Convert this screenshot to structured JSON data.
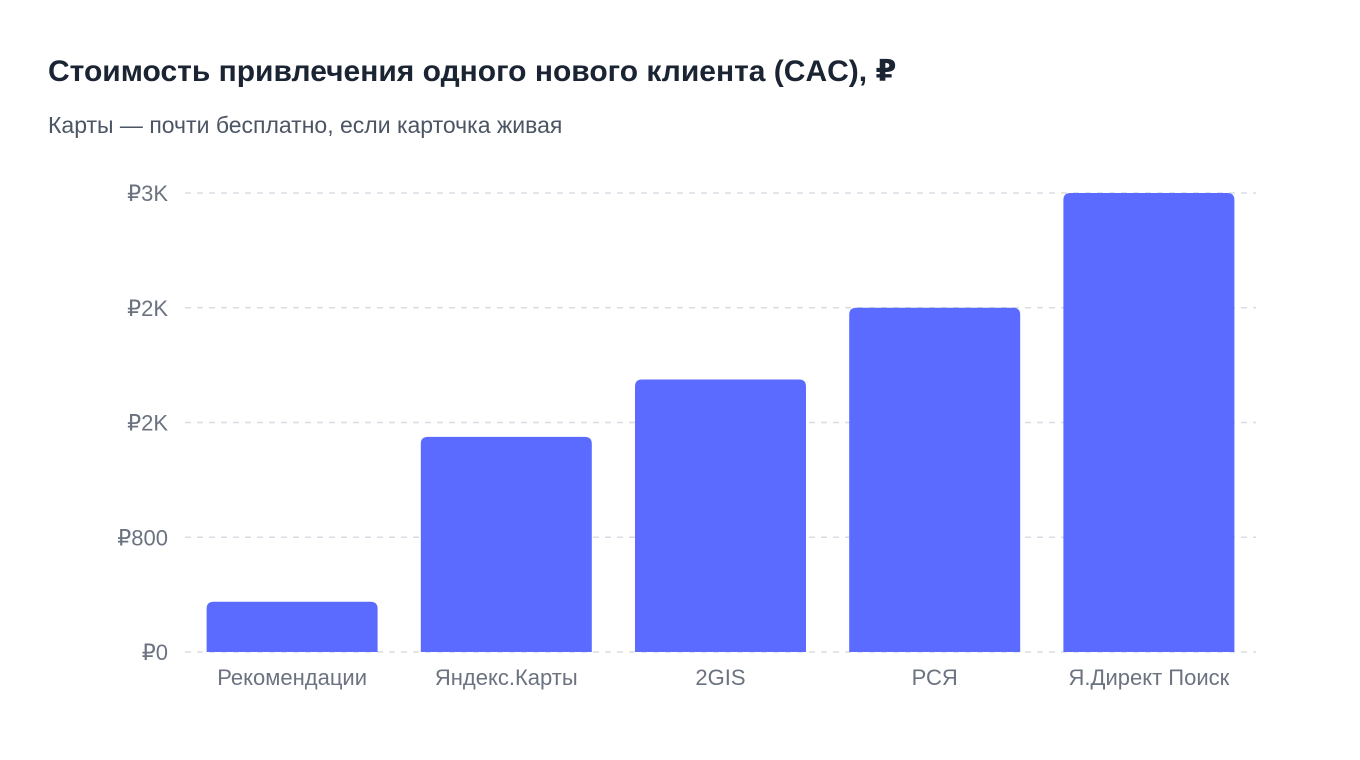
{
  "title": "Стоимость привлечения одного нового клиента (CAC), ₽",
  "subtitle": "Карты — почти бесплатно, если карточка живая",
  "colors": {
    "bar": "#5b6bff",
    "grid": "#d9dde3",
    "text": "#6b7280"
  },
  "chart_data": {
    "type": "bar",
    "title": "Стоимость привлечения одного нового клиента (CAC), ₽",
    "subtitle": "Карты — почти бесплатно, если карточка живая",
    "categories": [
      "Рекомендации",
      "Яндекс.Карты",
      "2GIS",
      "РСЯ",
      "Я.Директ Поиск"
    ],
    "values": [
      350,
      1500,
      1900,
      2400,
      3200
    ],
    "ylim": [
      0,
      3200
    ],
    "yticks": [
      {
        "value": 0,
        "label": "₽0"
      },
      {
        "value": 800,
        "label": "₽800"
      },
      {
        "value": 1600,
        "label": "₽2K"
      },
      {
        "value": 2400,
        "label": "₽2K"
      },
      {
        "value": 3200,
        "label": "₽3K"
      }
    ],
    "grid": true,
    "legend": "none",
    "xlabel": "",
    "ylabel": ""
  }
}
